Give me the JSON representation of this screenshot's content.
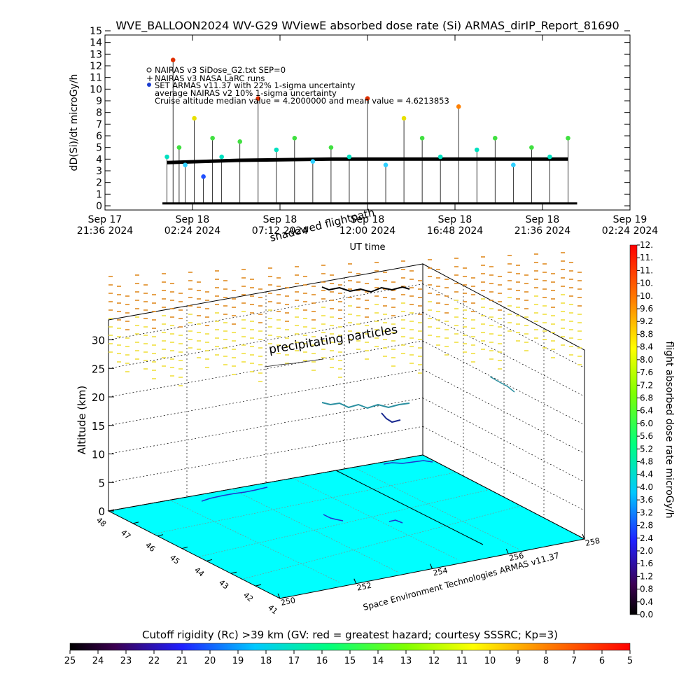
{
  "title": "WVE_BALLOON2024 WV-G29 WViewE absorbed dose rate (Si) ARMAS_dirIP_Report_81690",
  "top_plot": {
    "ylabel": "dD(Si)/dt microGy/h",
    "xlabel": "UT time",
    "legend": [
      "NAIRAS v3 SiDose_G2.txt SEP=0",
      "NAIRAS v3 NASA LaRC runs",
      "SET ARMAS v11.37 with 22% 1-sigma uncertainty",
      "average NAIRAS v2 10% 1-sigma uncertainty",
      "Cruise altitude median value = 4.2000000 and mean value = 4.6213853"
    ],
    "y_ticks": [
      "0",
      "1",
      "2",
      "3",
      "4",
      "5",
      "6",
      "7",
      "8",
      "9",
      "10",
      "11",
      "12",
      "13",
      "14",
      "15"
    ],
    "x_ticks": [
      {
        "l1": "Sep 17",
        "l2": "21:36 2024"
      },
      {
        "l1": "Sep 18",
        "l2": "02:24 2024"
      },
      {
        "l1": "Sep 18",
        "l2": "07:12 2024"
      },
      {
        "l1": "Sep 18",
        "l2": "12:00 2024"
      },
      {
        "l1": "Sep 18",
        "l2": "16:48 2024"
      },
      {
        "l1": "Sep 18",
        "l2": "21:36 2024"
      },
      {
        "l1": "Sep 19",
        "l2": "02:24 2024"
      }
    ]
  },
  "labels_3d": {
    "shadowed_flightpath": "shadowed flightpath",
    "precipitating_particles": "precipitating particles",
    "zlabel": "Altitude (km)",
    "credit": "Space Environment Technologies ARMAS v11.37",
    "z_ticks": [
      "0",
      "5",
      "10",
      "15",
      "20",
      "25",
      "30"
    ],
    "lon_ticks": [
      "250",
      "252",
      "254",
      "256",
      "258"
    ],
    "lat_ticks": [
      "41",
      "42",
      "43",
      "44",
      "45",
      "46",
      "47",
      "48"
    ]
  },
  "right_colorbar": {
    "label": "flight absorbed dose rate microGy/h",
    "ticks": [
      "0.0",
      "0.4",
      "0.8",
      "1.2",
      "1.6",
      "2.0",
      "2.4",
      "2.8",
      "3.2",
      "3.6",
      "4.0",
      "4.4",
      "4.8",
      "5.2",
      "5.6",
      "6.0",
      "6.4",
      "6.8",
      "7.2",
      "7.6",
      "8.0",
      "8.4",
      "8.8",
      "9.2",
      "9.6",
      "10.",
      "10.",
      "11.",
      "11.",
      "12."
    ]
  },
  "bottom_colorbar": {
    "title": "Cutoff rigidity (Rc) >39 km (GV: red = greatest hazard; courtesy SSSRC; Kp=3)",
    "ticks": [
      "25",
      "24",
      "23",
      "22",
      "21",
      "20",
      "19",
      "18",
      "17",
      "16",
      "15",
      "14",
      "13",
      "12",
      "11",
      "10",
      "9",
      "8",
      "7",
      "6",
      "5"
    ]
  },
  "chart_data": {
    "type": "scatter",
    "title": "WVE_BALLOON2024 WV-G29 WViewE absorbed dose rate (Si) ARMAS_dirIP_Report_81690",
    "xlabel": "UT time",
    "ylabel": "dD(Si)/dt microGy/h",
    "ylim": [
      0,
      15
    ],
    "xlim": [
      "2024-09-17 21:36",
      "2024-09-19 02:24"
    ],
    "series": [
      {
        "name": "SET ARMAS v11.37 with 22% 1-sigma uncertainty",
        "x": [
          "2024-09-18 01:00",
          "2024-09-18 01:20",
          "2024-09-18 01:40",
          "2024-09-18 02:00",
          "2024-09-18 02:30",
          "2024-09-18 03:00",
          "2024-09-18 03:30",
          "2024-09-18 04:00",
          "2024-09-18 05:00",
          "2024-09-18 06:00",
          "2024-09-18 07:00",
          "2024-09-18 08:00",
          "2024-09-18 09:00",
          "2024-09-18 10:00",
          "2024-09-18 11:00",
          "2024-09-18 12:00",
          "2024-09-18 13:00",
          "2024-09-18 14:00",
          "2024-09-18 15:00",
          "2024-09-18 16:00",
          "2024-09-18 17:00",
          "2024-09-18 18:00",
          "2024-09-18 19:00",
          "2024-09-18 20:00",
          "2024-09-18 21:00",
          "2024-09-18 22:00",
          "2024-09-18 23:00"
        ],
        "y": [
          4.2,
          12.5,
          5.0,
          3.5,
          7.5,
          2.5,
          5.8,
          4.2,
          5.5,
          9.2,
          4.8,
          5.8,
          3.8,
          5.0,
          4.2,
          9.2,
          3.5,
          7.5,
          5.8,
          4.2,
          8.5,
          4.8,
          5.8,
          3.5,
          5.0,
          4.2,
          5.8
        ]
      },
      {
        "name": "average NAIRAS v2 10% 1-sigma uncertainty",
        "x": [
          "2024-09-18 01:00",
          "2024-09-18 05:00",
          "2024-09-18 10:00",
          "2024-09-18 15:00",
          "2024-09-18 20:00",
          "2024-09-18 23:00"
        ],
        "y": [
          3.7,
          3.9,
          4.0,
          4.0,
          4.0,
          4.0
        ]
      }
    ]
  }
}
